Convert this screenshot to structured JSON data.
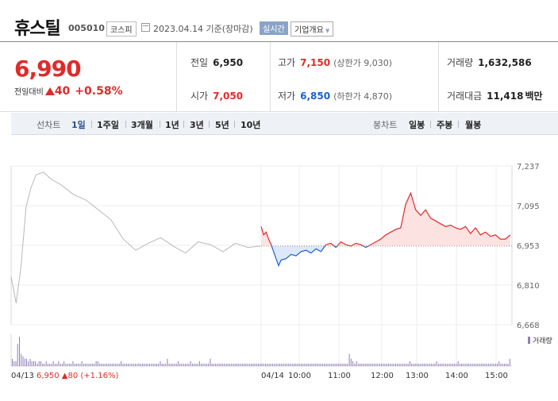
{
  "header": {
    "name": "휴스틸",
    "code": "005010",
    "market": "코스피",
    "date": "2023.04.14",
    "basis": "기준(장마감)",
    "live_label": "실시간",
    "company_info_label": "기업개요"
  },
  "price": {
    "current": "6,990",
    "change_label": "전일대비",
    "change": "40",
    "change_rate": "+0.58%"
  },
  "stats": {
    "prev_close_label": "전일",
    "prev_close": "6,950",
    "open_label": "시가",
    "open": "7,050",
    "high_label": "고가",
    "high": "7,150",
    "upper_limit": "(상한가 9,030)",
    "low_label": "저가",
    "low": "6,850",
    "lower_limit": "(하한가 4,870)",
    "volume_label": "거래량",
    "volume": "1,632,586",
    "amount_label": "거래대금",
    "amount": "11,418",
    "amount_unit": "백만"
  },
  "tabs": {
    "line_chart_label": "선차트",
    "line_periods": [
      "1일",
      "1주일",
      "3개월",
      "1년",
      "3년",
      "5년",
      "10년"
    ],
    "candle_chart_label": "봉차트",
    "candle_periods": [
      "일봉",
      "주봉",
      "월봉"
    ]
  },
  "colors": {
    "up": "#e12a2a",
    "down": "#1a5fd6",
    "prev_day_line": "#b8b8b8",
    "volume_bar": "#8e7fb8"
  },
  "chart_data": {
    "type": "line",
    "yticks": [
      "7,237",
      "7,095",
      "6,953",
      "6,810",
      "6,668"
    ],
    "ylim": [
      6668,
      7237
    ],
    "reference_price": 6950,
    "xticks": [
      "04/14",
      "10:00",
      "11:00",
      "12:00",
      "13:00",
      "14:00",
      "15:00"
    ],
    "prev_day_label": "04/13",
    "prev_day_close": "6,950",
    "prev_day_change": "80",
    "prev_day_rate": "(+1.16%)",
    "volume_legend": "거래량",
    "series": [
      {
        "x": [
          0,
          0.02,
          0.04,
          0.06,
          0.08,
          0.1,
          0.13,
          0.16,
          0.2,
          0.25,
          0.3,
          0.35,
          0.4,
          0.45,
          0.5,
          0.55,
          0.6,
          0.65,
          0.7,
          0.75,
          0.8,
          0.85,
          0.9,
          0.95,
          1
        ],
        "values": [
          6840,
          6745,
          6880,
          7090,
          7160,
          7205,
          7215,
          7190,
          7170,
          7135,
          7115,
          7080,
          7045,
          6975,
          6935,
          6960,
          6980,
          6950,
          6925,
          6965,
          6955,
          6930,
          6960,
          6945,
          6950
        ]
      },
      {
        "x": [
          0,
          0.01,
          0.02,
          0.03,
          0.04,
          0.05,
          0.06,
          0.07,
          0.08,
          0.1,
          0.12,
          0.14,
          0.16,
          0.18,
          0.2,
          0.22,
          0.24,
          0.26,
          0.28,
          0.3,
          0.32,
          0.34,
          0.36,
          0.38,
          0.4,
          0.42,
          0.44,
          0.46,
          0.48,
          0.5,
          0.52,
          0.54,
          0.56,
          0.58,
          0.6,
          0.62,
          0.64,
          0.66,
          0.68,
          0.7,
          0.72,
          0.74,
          0.76,
          0.78,
          0.8,
          0.82,
          0.84,
          0.86,
          0.88,
          0.9,
          0.92,
          0.94,
          0.96,
          0.98,
          1
        ],
        "values": [
          7020,
          6990,
          7000,
          6975,
          6955,
          6930,
          6905,
          6880,
          6900,
          6905,
          6920,
          6915,
          6930,
          6935,
          6925,
          6940,
          6930,
          6955,
          6960,
          6945,
          6965,
          6955,
          6950,
          6960,
          6955,
          6945,
          6955,
          6965,
          6975,
          6990,
          7000,
          7010,
          7015,
          7100,
          7140,
          7080,
          7060,
          7080,
          7050,
          7040,
          7030,
          7020,
          7025,
          7015,
          7010,
          7020,
          6995,
          7015,
          6990,
          7000,
          6985,
          6990,
          6975,
          6975,
          6990
        ]
      }
    ],
    "volume": [
      3,
      2,
      2,
      9,
      12,
      5,
      4,
      3,
      3,
      2,
      3,
      2,
      2,
      2,
      1,
      2,
      2,
      1,
      1,
      2,
      1,
      1,
      1,
      2,
      1,
      1,
      2,
      1,
      1,
      2,
      1,
      1,
      1,
      1,
      2,
      1,
      1,
      1,
      1,
      2,
      1,
      1,
      1,
      1,
      1,
      1,
      1,
      2,
      2,
      1,
      1,
      1,
      1,
      1,
      1,
      1,
      1,
      1,
      1,
      1,
      1,
      2,
      1,
      1,
      1,
      1,
      1,
      1,
      1,
      1,
      1,
      1,
      1,
      1,
      1,
      1,
      1,
      1,
      1,
      1,
      1,
      1,
      1,
      2,
      1,
      1,
      1,
      3,
      1,
      1,
      1,
      1,
      1,
      2,
      1,
      1,
      1,
      1,
      1,
      1,
      2,
      1,
      1,
      1,
      1,
      2,
      1,
      1,
      1,
      1,
      1,
      3,
      1,
      1,
      1,
      1,
      1,
      1,
      1,
      1,
      1,
      1,
      1,
      1,
      1,
      1,
      1,
      1,
      1,
      1,
      1,
      1,
      1,
      1,
      1,
      1,
      1,
      1,
      1,
      1,
      1,
      1,
      1,
      1,
      1,
      1,
      1,
      1,
      1,
      1,
      1,
      1,
      1,
      1,
      1,
      1,
      1,
      1,
      1,
      1,
      1,
      1,
      1,
      1,
      1,
      1,
      1,
      1,
      1,
      1,
      1,
      1,
      1,
      1,
      1,
      1,
      1,
      1,
      1,
      1,
      1,
      1,
      1,
      1,
      1,
      1,
      1,
      1,
      1,
      5,
      3,
      2,
      1,
      2,
      1,
      1,
      1,
      1,
      1,
      1,
      1,
      1,
      1,
      1,
      1,
      1,
      1,
      1,
      1,
      1,
      1,
      1,
      1,
      1,
      1,
      1,
      1,
      1,
      1,
      1,
      1,
      1,
      1,
      2,
      1,
      1,
      1,
      1,
      1,
      1,
      1,
      1,
      1,
      1,
      1,
      1,
      1,
      1,
      2,
      1,
      1,
      1,
      1,
      1,
      1,
      1,
      1,
      1,
      1,
      1,
      2,
      1,
      1,
      1,
      1,
      1,
      1,
      1,
      1,
      1,
      1,
      1,
      1,
      1,
      1,
      1,
      1,
      1,
      1,
      1,
      1,
      1,
      1,
      2,
      1,
      1,
      1,
      1,
      1,
      3
    ]
  }
}
